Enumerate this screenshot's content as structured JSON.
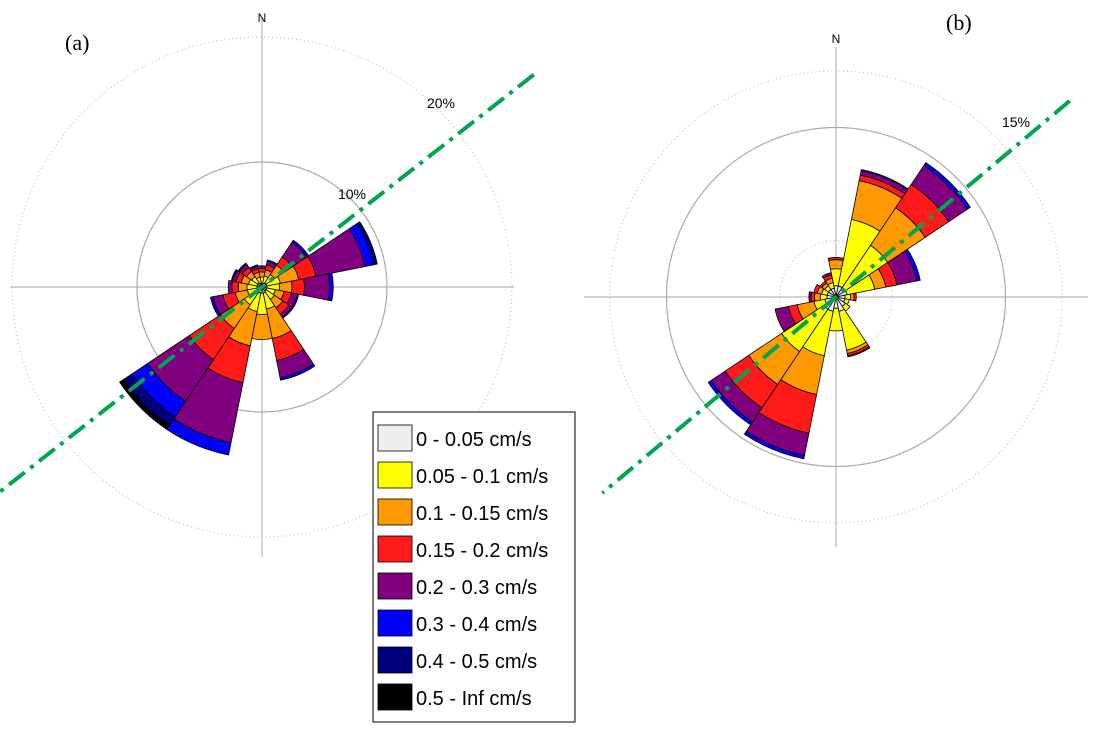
{
  "colors": {
    "bins": [
      "#eeeeee",
      "#ffff00",
      "#ff9900",
      "#ff1a1a",
      "#800080",
      "#0000ff",
      "#00007f",
      "#000000"
    ],
    "trend_line": "#00a550",
    "ring_solid": "#aaaaaa",
    "ring_dotted": "#bbbbbb",
    "axis": "#aaaaaa"
  },
  "legend": {
    "entries": [
      "0 - 0.05 cm/s",
      "0.05 - 0.1 cm/s",
      "0.1 - 0.15 cm/s",
      "0.15 - 0.2 cm/s",
      "0.2 - 0.3 cm/s",
      "0.3 - 0.4 cm/s",
      "0.4 - 0.5 cm/s",
      "0.5 - Inf cm/s"
    ]
  },
  "chart_data": [
    {
      "type": "wind_rose",
      "panel_label": "(a)",
      "north_label": "N",
      "ring_labels": [
        {
          "value": 10,
          "text": "10%"
        },
        {
          "value": 20,
          "text": "20%"
        }
      ],
      "sector_width_deg": 22.5,
      "trend_direction_deg": 52,
      "bin_labels": [
        "0 - 0.05 cm/s",
        "0.05 - 0.1 cm/s",
        "0.1 - 0.15 cm/s",
        "0.15 - 0.2 cm/s",
        "0.2 - 0.3 cm/s",
        "0.3 - 0.4 cm/s",
        "0.4 - 0.5 cm/s",
        "0.5 - Inf cm/s"
      ],
      "sectors": [
        {
          "direction": 0,
          "values": [
            0.3,
            0.5,
            0.4,
            0.3,
            0.2,
            0.0,
            0.0,
            0.0
          ]
        },
        {
          "direction": 22.5,
          "values": [
            0.3,
            0.6,
            0.5,
            0.4,
            0.3,
            0.1,
            0.0,
            0.0
          ]
        },
        {
          "direction": 45,
          "values": [
            0.4,
            0.8,
            0.9,
            0.8,
            1.4,
            0.2,
            0.0,
            0.0
          ]
        },
        {
          "direction": 67.5,
          "values": [
            0.4,
            1.1,
            1.5,
            1.4,
            4.0,
            0.7,
            0.3,
            0.0
          ]
        },
        {
          "direction": 90,
          "values": [
            0.4,
            1.0,
            1.0,
            1.0,
            2.0,
            0.3,
            0.0,
            0.0
          ]
        },
        {
          "direction": 112.5,
          "values": [
            0.4,
            0.7,
            0.7,
            0.6,
            0.5,
            0.1,
            0.0,
            0.0
          ]
        },
        {
          "direction": 135,
          "values": [
            0.4,
            0.8,
            0.8,
            0.6,
            0.3,
            0.1,
            0.0,
            0.0
          ]
        },
        {
          "direction": 157.5,
          "values": [
            0.5,
            1.3,
            2.4,
            1.8,
            1.4,
            0.2,
            0.0,
            0.0
          ]
        },
        {
          "direction": 180,
          "values": [
            0.5,
            1.7,
            2.0,
            0.0,
            0.0,
            0.0,
            0.0,
            0.0
          ]
        },
        {
          "direction": 202.5,
          "values": [
            0.5,
            1.5,
            2.8,
            3.0,
            4.9,
            1.0,
            0.0,
            0.0
          ]
        },
        {
          "direction": 225,
          "values": [
            0.5,
            1.2,
            2.3,
            3.0,
            4.0,
            1.5,
            0.8,
            0.4
          ]
        },
        {
          "direction": 247.5,
          "values": [
            0.4,
            0.8,
            1.0,
            1.0,
            0.8,
            0.2,
            0.0,
            0.0
          ]
        },
        {
          "direction": 270,
          "values": [
            0.4,
            0.8,
            0.7,
            0.5,
            0.3,
            0.0,
            0.0,
            0.0
          ]
        },
        {
          "direction": 292.5,
          "values": [
            0.4,
            0.7,
            0.6,
            0.4,
            0.3,
            0.1,
            0.0,
            0.0
          ]
        },
        {
          "direction": 315,
          "values": [
            0.4,
            0.6,
            0.5,
            0.4,
            0.3,
            0.1,
            0.0,
            0.0
          ]
        },
        {
          "direction": 337.5,
          "values": [
            0.3,
            0.5,
            0.4,
            0.3,
            0.2,
            0.1,
            0.0,
            0.0
          ]
        }
      ]
    },
    {
      "type": "wind_rose",
      "panel_label": "(b)",
      "north_label": "N",
      "ring_labels": [
        {
          "value": 15,
          "text": "15%"
        }
      ],
      "sector_width_deg": 22.5,
      "trend_direction_deg": 50,
      "bin_labels": [
        "0 - 0.05 cm/s",
        "0.05 - 0.1 cm/s",
        "0.1 - 0.15 cm/s",
        "0.15 - 0.2 cm/s",
        "0.2 - 0.3 cm/s",
        "0.3 - 0.4 cm/s",
        "0.4 - 0.5 cm/s",
        "0.5 - Inf cm/s"
      ],
      "sectors": [
        {
          "direction": 0,
          "values": [
            1.0,
            1.5,
            0.8,
            0.2,
            0.0,
            0.0,
            0.0,
            0.0
          ]
        },
        {
          "direction": 22.5,
          "values": [
            1.0,
            6.0,
            3.5,
            0.5,
            0.4,
            0.1,
            0.0,
            0.0
          ]
        },
        {
          "direction": 45,
          "values": [
            1.0,
            4.5,
            4.0,
            2.5,
            2.0,
            0.3,
            0.0,
            0.0
          ]
        },
        {
          "direction": 67.5,
          "values": [
            1.0,
            2.5,
            1.0,
            1.0,
            1.8,
            0.3,
            0.0,
            0.0
          ]
        },
        {
          "direction": 90,
          "values": [
            0.8,
            0.5,
            0.3,
            0.2,
            0.0,
            0.0,
            0.0,
            0.0
          ]
        },
        {
          "direction": 112.5,
          "values": [
            0.8,
            0.4,
            0.0,
            0.0,
            0.0,
            0.0,
            0.0,
            0.0
          ]
        },
        {
          "direction": 135,
          "values": [
            1.0,
            0.5,
            0.0,
            0.0,
            0.0,
            0.0,
            0.0,
            0.0
          ]
        },
        {
          "direction": 157.5,
          "values": [
            1.3,
            3.5,
            0.3,
            0.2,
            0.1,
            0.0,
            0.0,
            0.0
          ]
        },
        {
          "direction": 180,
          "values": [
            1.0,
            2.0,
            0.0,
            0.0,
            0.0,
            0.0,
            0.0,
            0.0
          ]
        },
        {
          "direction": 202.5,
          "values": [
            1.3,
            4.0,
            3.5,
            3.5,
            2.0,
            0.3,
            0.0,
            0.0
          ]
        },
        {
          "direction": 225,
          "values": [
            1.3,
            4.5,
            3.5,
            2.5,
            1.5,
            0.3,
            0.0,
            0.0
          ]
        },
        {
          "direction": 247.5,
          "values": [
            1.0,
            1.0,
            1.5,
            0.8,
            1.2,
            0.0,
            0.0,
            0.0
          ]
        },
        {
          "direction": 270,
          "values": [
            0.8,
            0.6,
            0.5,
            0.3,
            0.2,
            0.0,
            0.0,
            0.0
          ]
        },
        {
          "direction": 292.5,
          "values": [
            0.8,
            0.5,
            0.4,
            0.3,
            0.0,
            0.0,
            0.0,
            0.0
          ]
        },
        {
          "direction": 315,
          "values": [
            0.8,
            0.4,
            0.3,
            0.2,
            0.0,
            0.0,
            0.0,
            0.0
          ]
        },
        {
          "direction": 337.5,
          "values": [
            0.8,
            0.5,
            0.4,
            0.3,
            0.2,
            0.0,
            0.0,
            0.0
          ]
        }
      ]
    }
  ]
}
